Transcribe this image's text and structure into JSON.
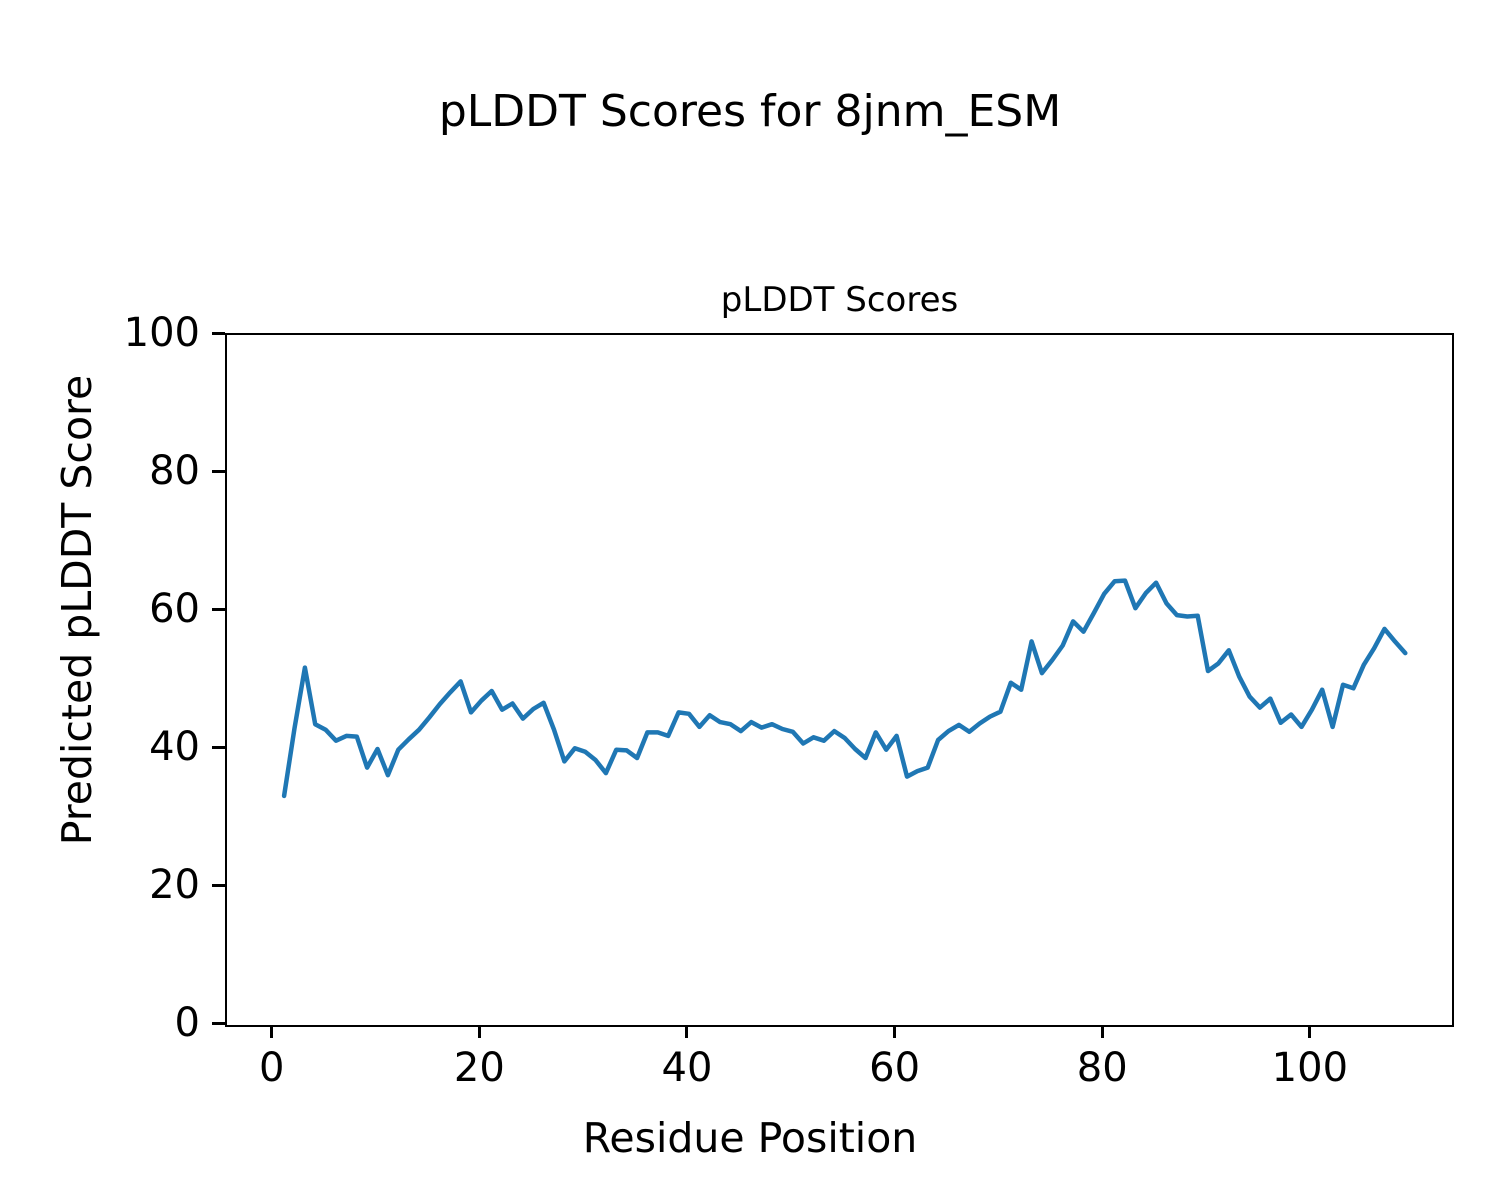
{
  "figure": {
    "title": "pLDDT Scores for 8jnm_ESM"
  },
  "chart_data": {
    "type": "line",
    "title": "pLDDT Scores",
    "xlabel": "Residue Position",
    "ylabel": "Predicted pLDDT Score",
    "x": [
      1,
      2,
      3,
      4,
      5,
      6,
      7,
      8,
      9,
      10,
      11,
      12,
      13,
      14,
      15,
      16,
      17,
      18,
      19,
      20,
      21,
      22,
      23,
      24,
      25,
      26,
      27,
      28,
      29,
      30,
      31,
      32,
      33,
      34,
      35,
      36,
      37,
      38,
      39,
      40,
      41,
      42,
      43,
      44,
      45,
      46,
      47,
      48,
      49,
      50,
      51,
      52,
      53,
      54,
      55,
      56,
      57,
      58,
      59,
      60,
      61,
      62,
      63,
      64,
      65,
      66,
      67,
      68,
      69,
      70,
      71,
      72,
      73,
      74,
      75,
      76,
      77,
      78,
      79,
      80,
      81,
      82,
      83,
      84,
      85,
      86,
      87,
      88,
      89,
      90,
      91,
      92,
      93,
      94,
      95,
      96,
      97,
      98,
      99,
      100,
      101,
      102,
      103,
      104,
      105,
      106,
      107,
      108,
      109
    ],
    "values": [
      33.2,
      43.0,
      51.8,
      43.6,
      42.8,
      41.2,
      41.9,
      41.8,
      37.3,
      40.0,
      36.2,
      39.9,
      41.4,
      42.8,
      44.6,
      46.5,
      48.2,
      49.8,
      45.3,
      47.0,
      48.4,
      45.7,
      46.6,
      44.4,
      45.8,
      46.7,
      42.8,
      38.2,
      40.1,
      39.6,
      38.4,
      36.5,
      39.9,
      39.8,
      38.7,
      42.4,
      42.4,
      41.9,
      45.3,
      45.1,
      43.2,
      44.9,
      43.9,
      43.6,
      42.6,
      43.9,
      43.1,
      43.6,
      42.9,
      42.5,
      40.8,
      41.7,
      41.2,
      42.6,
      41.6,
      40.0,
      38.7,
      42.4,
      39.9,
      41.9,
      36.0,
      36.8,
      37.3,
      41.3,
      42.6,
      43.5,
      42.5,
      43.7,
      44.7,
      45.4,
      49.6,
      48.6,
      55.6,
      51.0,
      52.9,
      55.0,
      58.5,
      57.0,
      59.7,
      62.5,
      64.3,
      64.4,
      60.4,
      62.6,
      64.1,
      61.1,
      59.4,
      59.2,
      59.3,
      51.3,
      52.4,
      54.3,
      50.5,
      47.6,
      46.0,
      47.3,
      43.8,
      45.0,
      43.2,
      45.7,
      48.6,
      43.2,
      49.3,
      48.8,
      52.2,
      54.6,
      57.4,
      55.6,
      53.9
    ],
    "xlim": [
      -4.5,
      113.5
    ],
    "ylim": [
      0,
      100
    ],
    "xticks": [
      0,
      20,
      40,
      60,
      80,
      100
    ],
    "yticks": [
      0,
      20,
      40,
      60,
      80,
      100
    ],
    "line_color": "#1f77b4",
    "line_width": 4.5,
    "grid": false,
    "legend": false
  }
}
